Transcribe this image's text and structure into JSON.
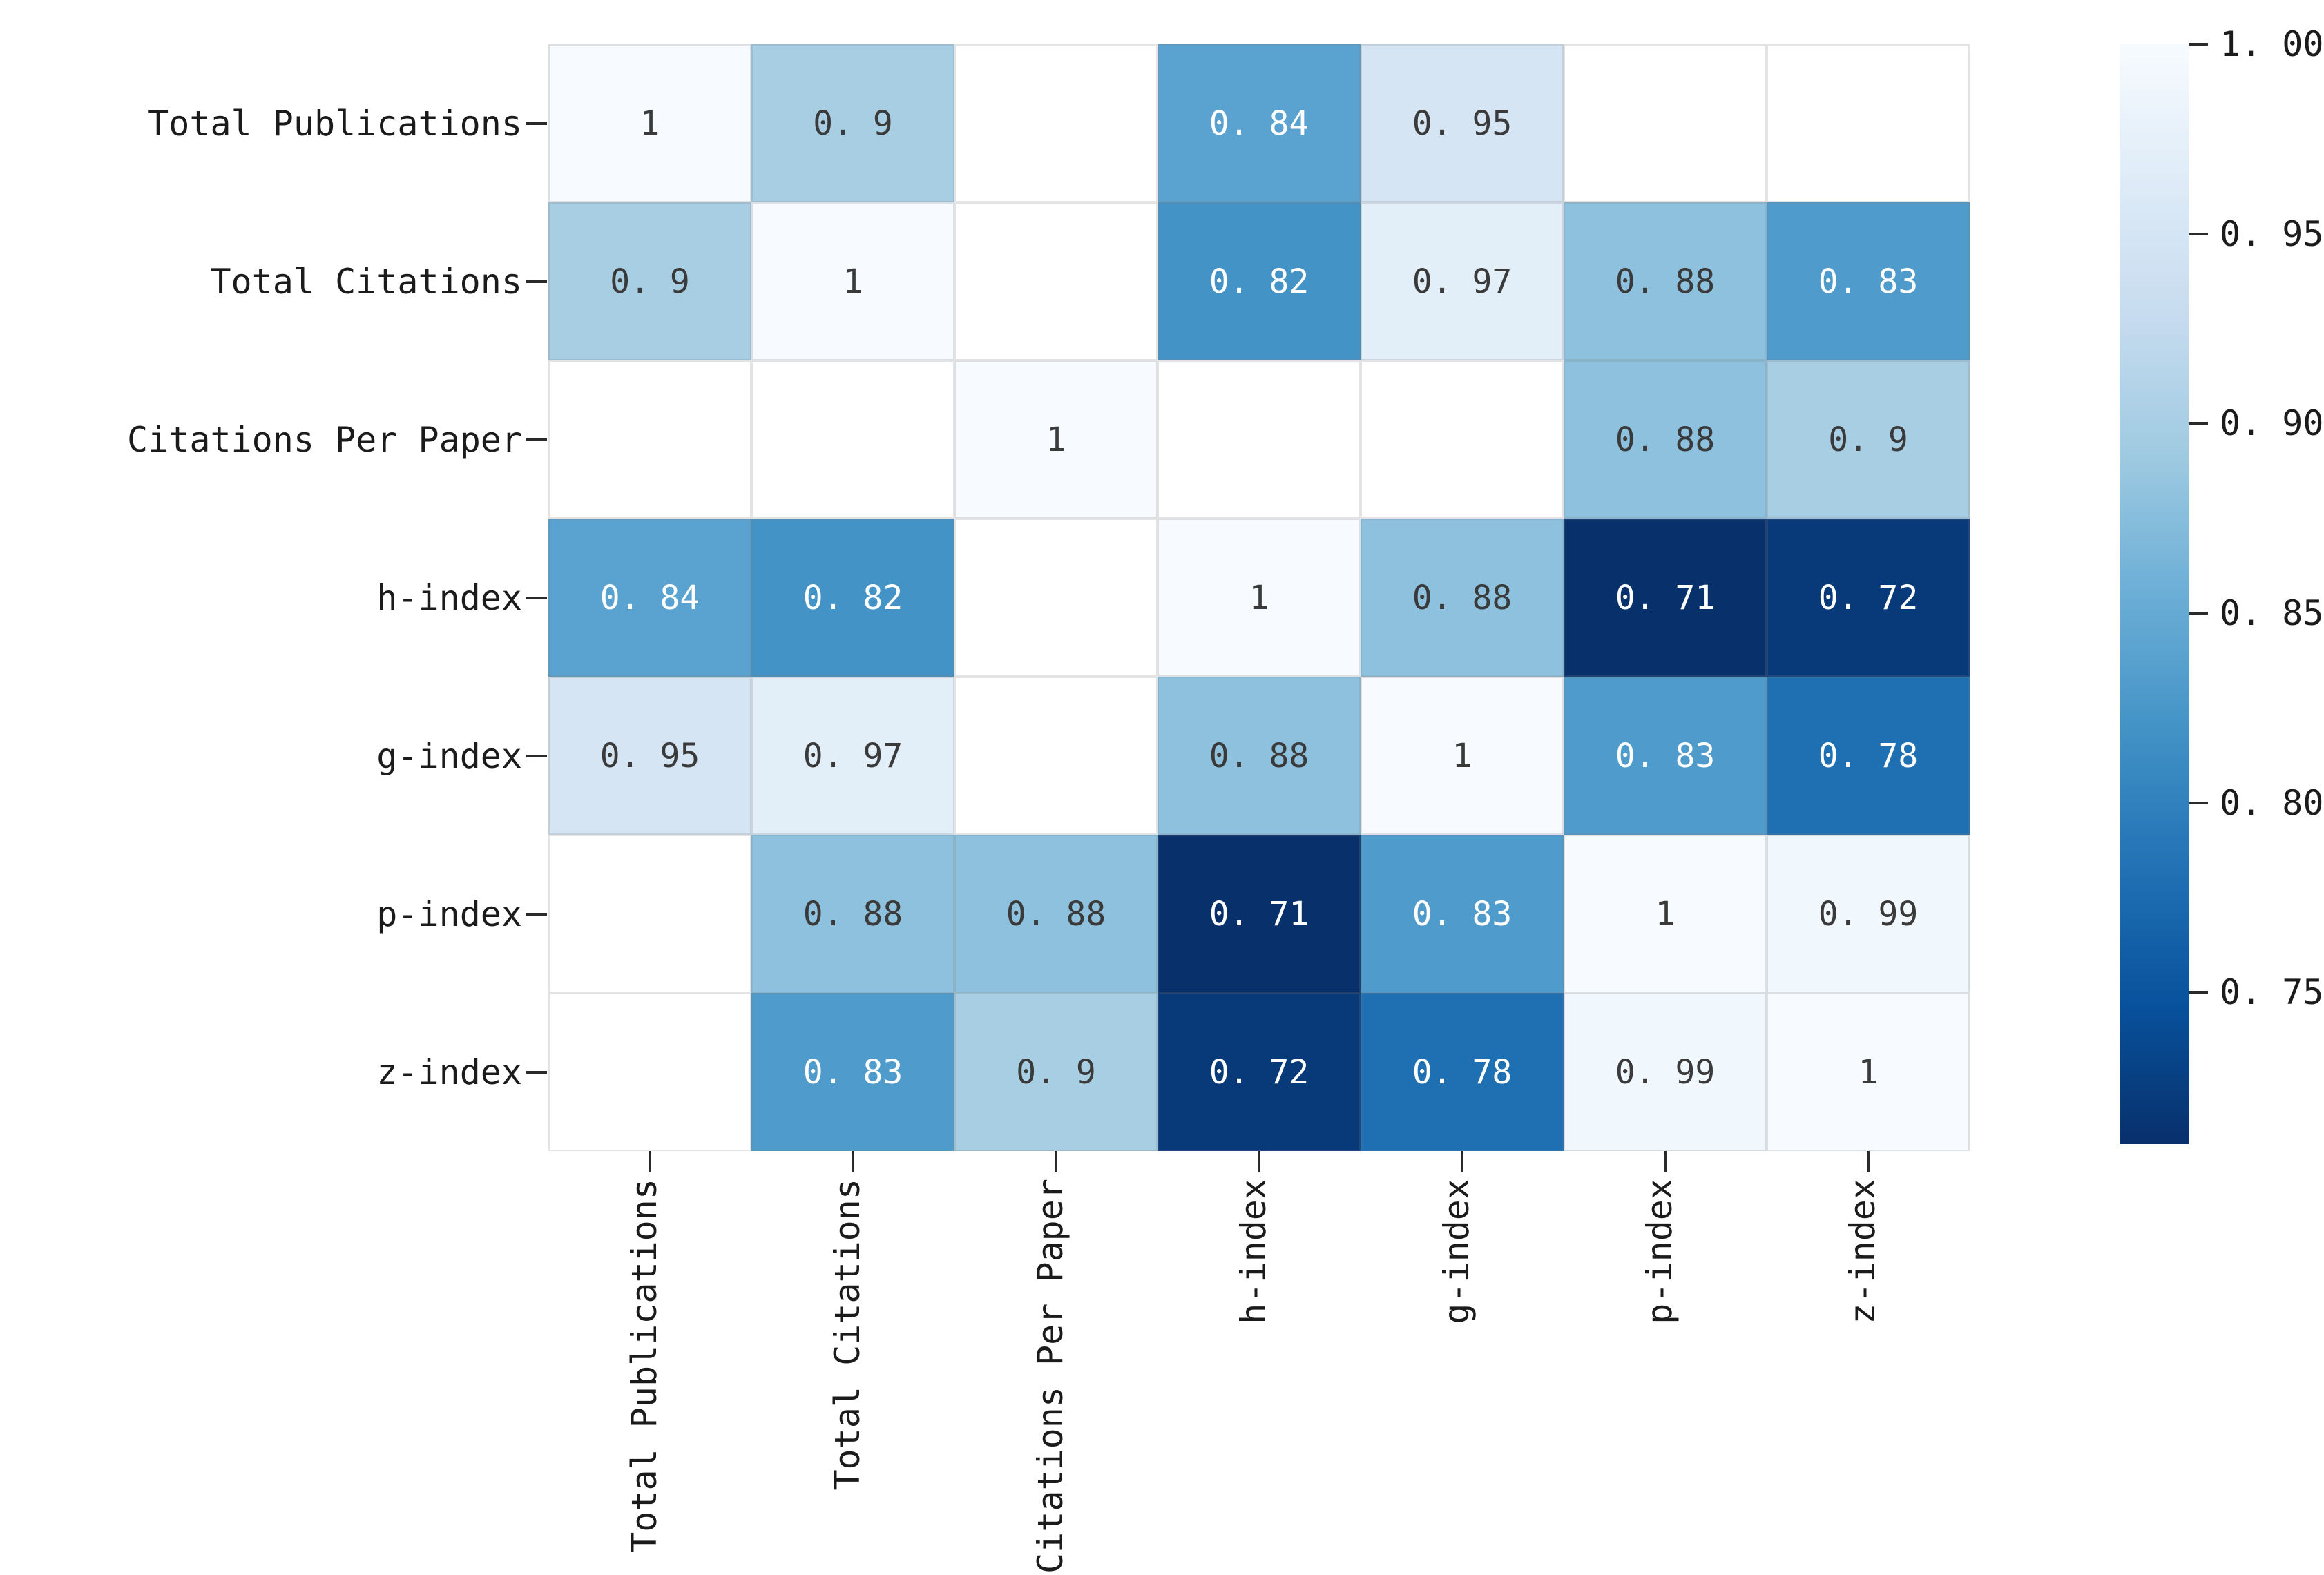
{
  "figure": {
    "background": "#ffffff"
  },
  "chart_data": {
    "type": "heatmap",
    "title": "",
    "xlabel": "",
    "ylabel": "",
    "categories": [
      "Total Publications",
      "Total Citations",
      "Citations Per Paper",
      "h-index",
      "g-index",
      "p-index",
      "z-index"
    ],
    "matrix": [
      [
        1,
        0.9,
        null,
        0.84,
        0.95,
        null,
        null
      ],
      [
        0.9,
        1,
        null,
        0.82,
        0.97,
        0.88,
        0.83
      ],
      [
        null,
        null,
        1,
        null,
        null,
        0.88,
        0.9
      ],
      [
        0.84,
        0.82,
        null,
        1,
        0.88,
        0.71,
        0.72
      ],
      [
        0.95,
        0.97,
        null,
        0.88,
        1,
        0.83,
        0.78
      ],
      [
        null,
        0.88,
        0.88,
        0.71,
        0.83,
        1,
        0.99
      ],
      [
        null,
        0.83,
        0.9,
        0.72,
        0.78,
        0.99,
        1
      ]
    ],
    "masked_value": null,
    "mask_color": "#ffffff",
    "vmin": 0.71,
    "vmax": 1.0,
    "colormap": "Blues reversed (high values light, low values dark)",
    "colormap_stops_light_to_dark": [
      "#f7fbff",
      "#deebf7",
      "#c6dbef",
      "#9ecae1",
      "#6baed6",
      "#4292c6",
      "#2171b5",
      "#08519c",
      "#08306b"
    ],
    "colorbar": {
      "position": "right",
      "ticks": [
        {
          "label": "1.00",
          "value": 1.0
        },
        {
          "label": "0.95",
          "value": 0.95
        },
        {
          "label": "0.90",
          "value": 0.9
        },
        {
          "label": "0.85",
          "value": 0.85
        },
        {
          "label": "0.80",
          "value": 0.8
        },
        {
          "label": "0.75",
          "value": 0.75
        }
      ]
    },
    "annotation_text_dark": "#3a3a3a",
    "annotation_text_light": "#ffffff",
    "annotation_light_threshold": 0.86,
    "tick_mark_color": "#2a2a2a",
    "axis_label_color": "#1b1b1b",
    "grid_line_color": "rgba(128,128,128,0.22)",
    "grid": true,
    "legend_position": "right colorbar"
  }
}
